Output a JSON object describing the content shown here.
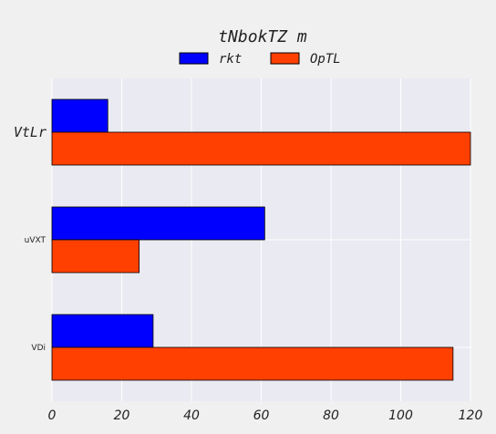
{
  "chart_data": {
    "type": "bar",
    "orientation": "horizontal",
    "title": "tNbokTZ m",
    "categories": [
      "VtLr",
      "uVXT",
      "VDi"
    ],
    "series": [
      {
        "name": "rkt",
        "color": "#0000ff",
        "values": [
          16,
          61,
          29
        ]
      },
      {
        "name": "OpTL",
        "color": "#ff4000",
        "values": [
          120,
          25,
          115
        ]
      }
    ],
    "xlim": [
      0,
      120
    ],
    "xticks": [
      "0",
      "20",
      "40",
      "60",
      "80",
      "100",
      "120"
    ],
    "grid": true,
    "legend_position": "top-center",
    "plot_background": "#eaeaf2"
  }
}
